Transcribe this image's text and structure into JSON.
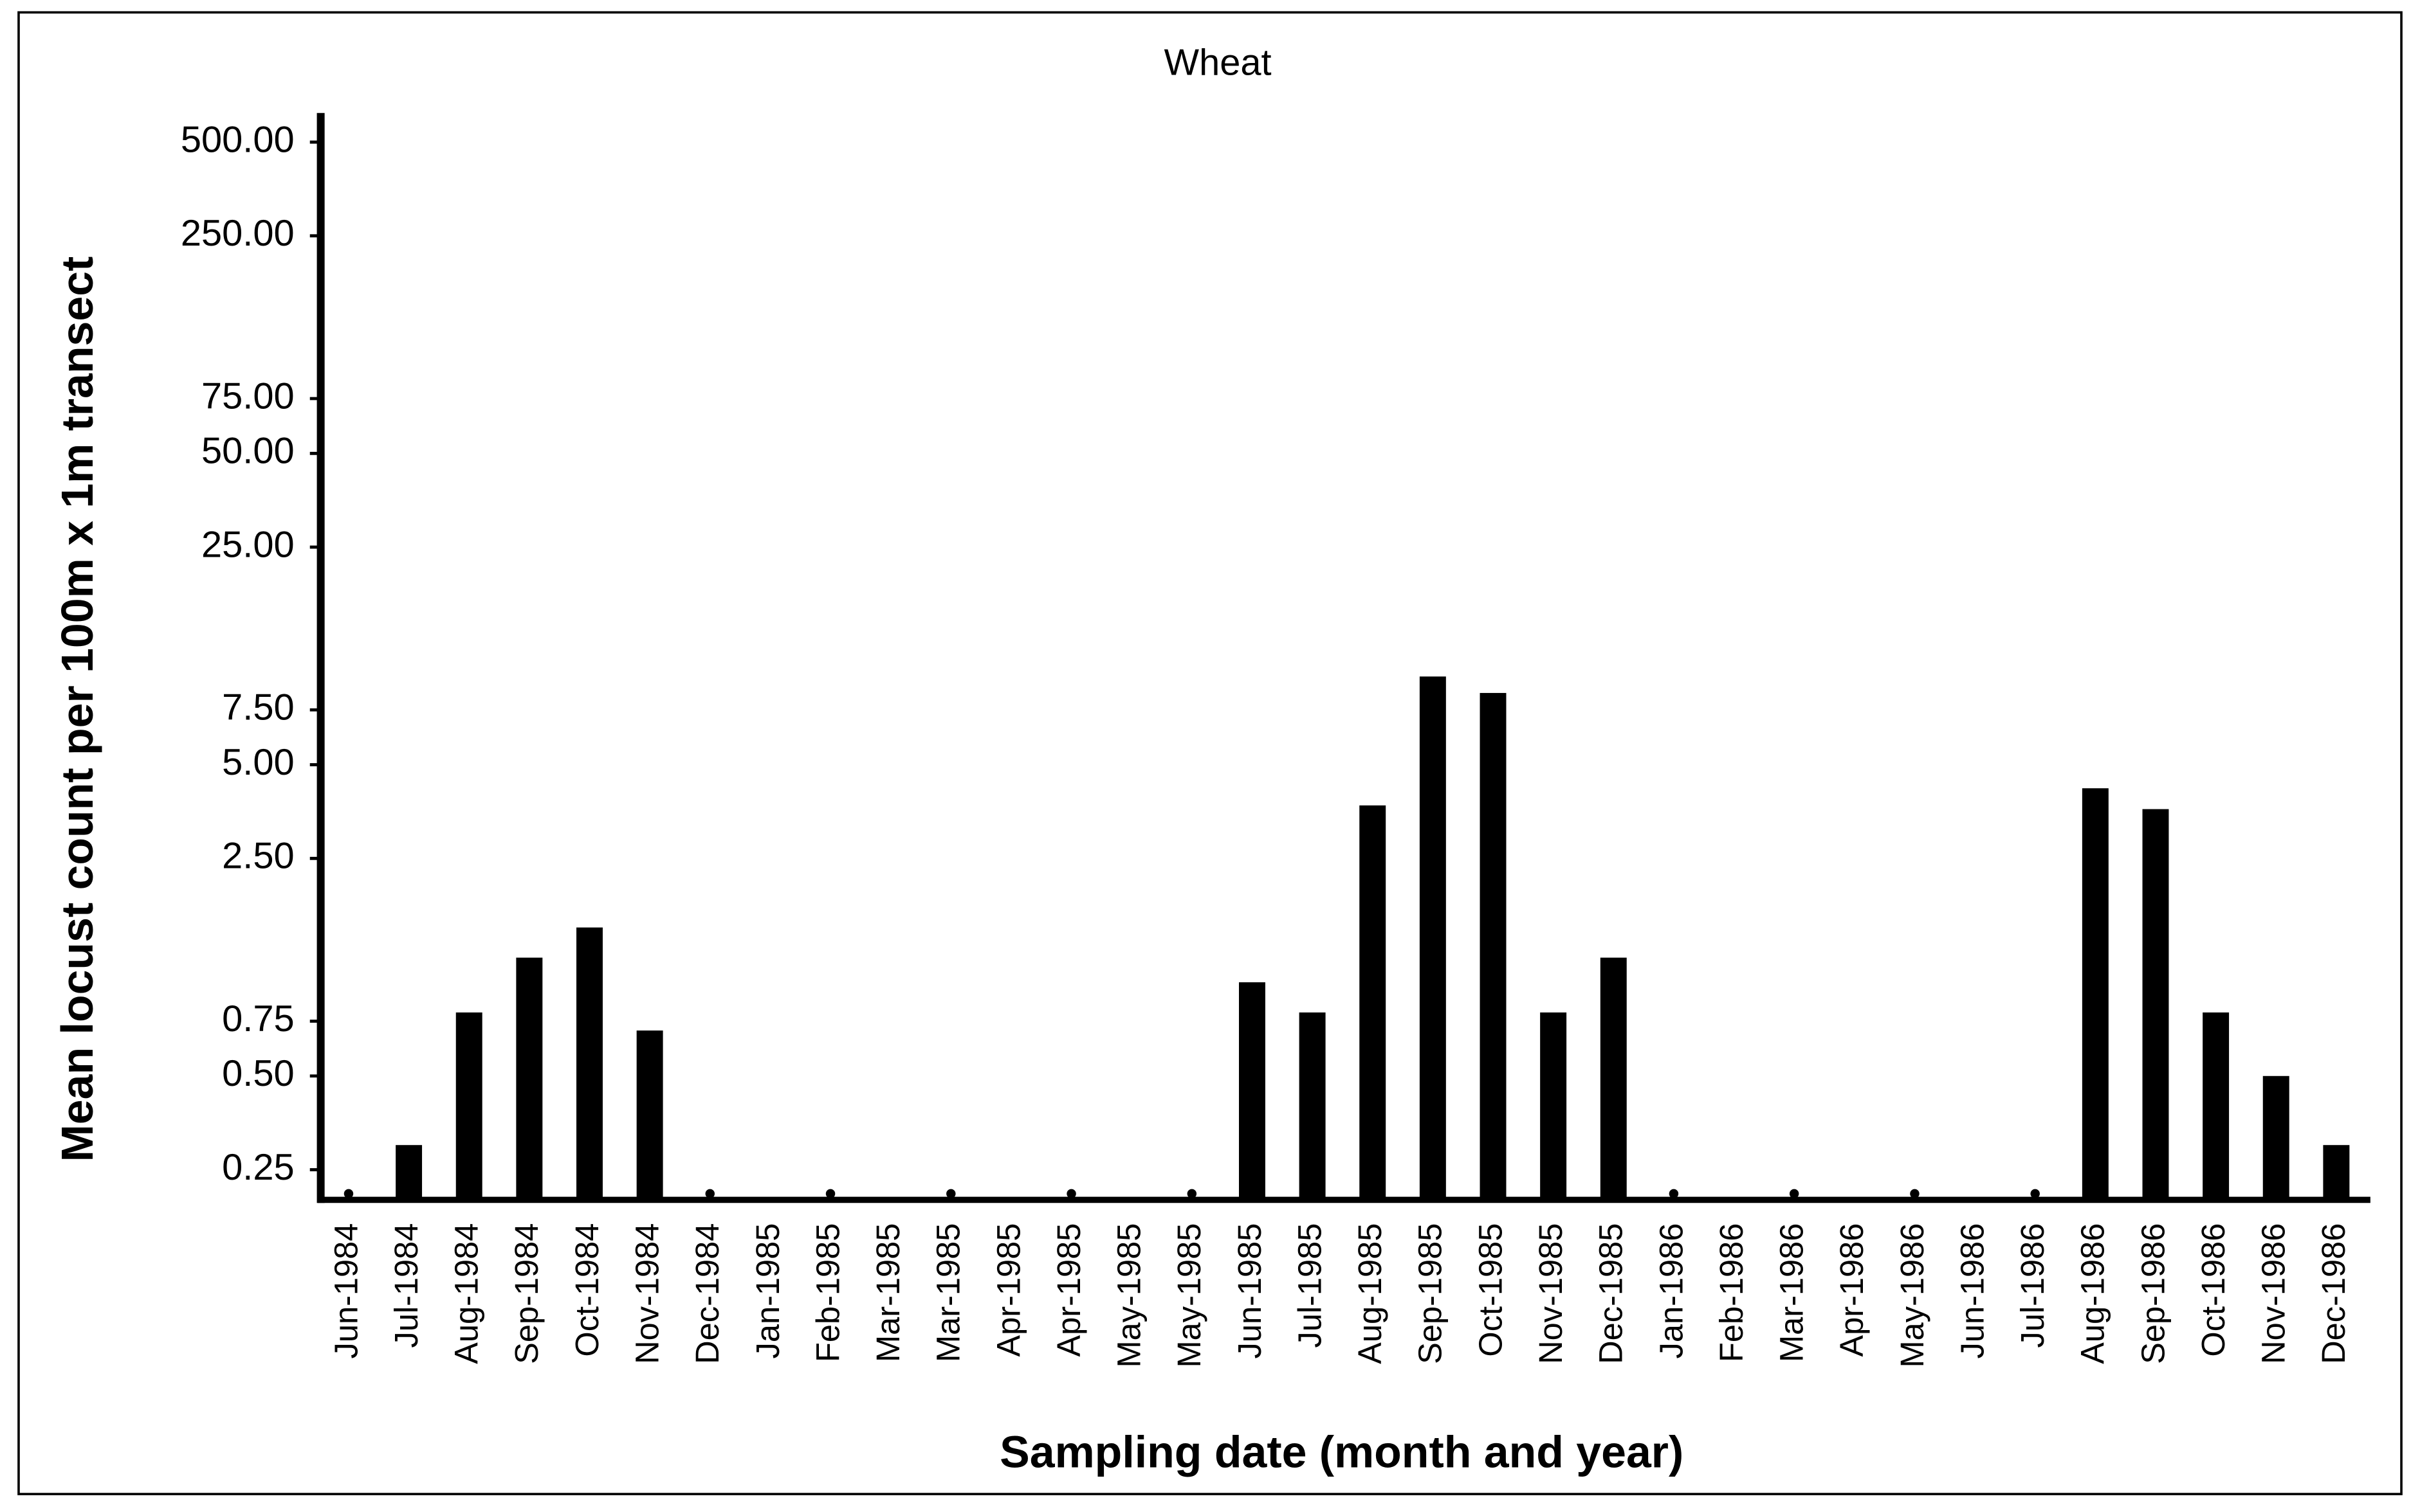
{
  "chart_data": {
    "type": "bar",
    "title": "Wheat",
    "x_label": "Sampling date (month and year)",
    "y_label": "Mean locust count per 100m x 1m transect",
    "categories": [
      "Jun-1984",
      "Jul-1984",
      "Aug-1984",
      "Sep-1984",
      "Oct-1984",
      "Nov-1984",
      "Dec-1984",
      "Jan-1985",
      "Feb-1985",
      "Mar-1985",
      "Mar-1985",
      "Apr-1985",
      "Apr-1985",
      "May-1985",
      "May-1985",
      "Jun-1985",
      "Jul-1985",
      "Aug-1985",
      "Sep-1985",
      "Oct-1985",
      "Nov-1985",
      "Dec-1985",
      "Jan-1986",
      "Feb-1986",
      "Mar-1986",
      "Apr-1986",
      "May-1986",
      "Jun-1986",
      "Jul-1986",
      "Aug-1986",
      "Sep-1986",
      "Oct-1986",
      "Nov-1986",
      "Dec-1986"
    ],
    "values": [
      0,
      0.3,
      0.8,
      1.2,
      1.5,
      0.7,
      0,
      null,
      0,
      null,
      0,
      null,
      0,
      null,
      0,
      1.0,
      0.8,
      3.7,
      9.6,
      8.5,
      0.8,
      1.2,
      0,
      null,
      0,
      null,
      0,
      null,
      0,
      4.2,
      3.6,
      0.8,
      0.5,
      0.3
    ],
    "color": "#000000",
    "log_scale": true,
    "ylim": [
      0.2,
      620
    ],
    "yticks": [
      0.25,
      {
        "value": 0.5,
        "label": "0.50"
      },
      0.75,
      {
        "value": 2.5,
        "label": "2.50"
      },
      {
        "value": 5,
        "label": "5.00"
      },
      {
        "value": 7.5,
        "label": "7.50"
      },
      {
        "value": 25,
        "label": "25.00"
      },
      {
        "value": 50,
        "label": "50.00"
      },
      {
        "value": 75,
        "label": "75.00"
      },
      {
        "value": 250,
        "label": "250.00"
      },
      {
        "value": 500,
        "label": "500.00"
      }
    ]
  }
}
